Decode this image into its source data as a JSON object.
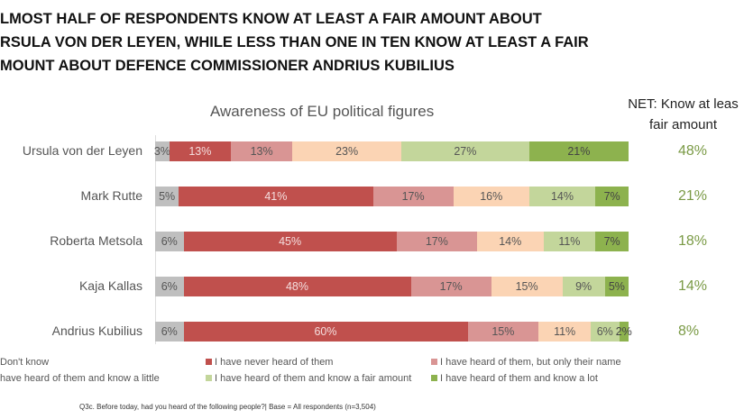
{
  "title_lines": [
    "LMOST HALF OF RESPONDENTS KNOW AT LEAST A FAIR AMOUNT ABOUT",
    "RSULA VON DER LEYEN, WHILE LESS THAN ONE IN TEN KNOW AT LEAST A FAIR",
    "MOUNT ABOUT DEFENCE COMMISSIONER ANDRIUS KUBILIUS"
  ],
  "net_header": [
    "NET: Know at leas",
    "fair amount"
  ],
  "footnote": "Q3c. Before today, had you heard of the following people?| Base = All respondents (n=3,504)",
  "chart_data": {
    "type": "bar",
    "stacked": true,
    "orientation": "horizontal",
    "title": "Awareness of EU political figures",
    "categories": [
      "Ursula von der Leyen",
      "Mark Rutte",
      "Roberta Metsola",
      "Kaja Kallas",
      "Andrius Kubilius"
    ],
    "series": [
      {
        "name": "Don't know",
        "legend_label": "Don't know",
        "color": "#bfbfbf",
        "text": "#555",
        "values": [
          3,
          5,
          6,
          6,
          6
        ]
      },
      {
        "name": "I have never heard of them",
        "legend_label": "I have never heard of them",
        "color": "#c0504d",
        "text": "#f4dede",
        "values": [
          13,
          41,
          45,
          48,
          60
        ]
      },
      {
        "name": "I have heard of them, but only their name",
        "legend_label": "I have heard of them, but only their name",
        "color": "#d99594",
        "text": "#555",
        "values": [
          13,
          17,
          17,
          17,
          15
        ]
      },
      {
        "name": "I have heard of them and know a little",
        "legend_label": "have heard of them and know a little",
        "color": "#fbd4b4",
        "text": "#555",
        "values": [
          23,
          16,
          14,
          15,
          11
        ]
      },
      {
        "name": "I have heard of them and know a fair amount",
        "legend_label": "I have heard of them and know a fair amount",
        "color": "#c3d69b",
        "text": "#555",
        "values": [
          27,
          14,
          11,
          9,
          6
        ]
      },
      {
        "name": "I have heard of them and know a lot",
        "legend_label": "I have heard of them and know a lot",
        "color": "#8db24e",
        "text": "#444",
        "values": [
          21,
          7,
          7,
          5,
          2
        ]
      }
    ],
    "net_values": [
      "48%",
      "21%",
      "18%",
      "14%",
      "8%"
    ],
    "xlim": [
      0,
      100
    ]
  }
}
